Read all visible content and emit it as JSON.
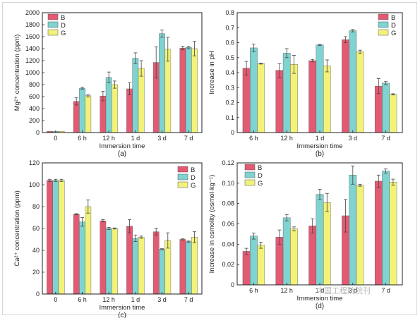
{
  "colors": {
    "B": "#e35a73",
    "D": "#7fd3d0",
    "G": "#f2f27a",
    "axis": "#222222"
  },
  "watermark": "中国工程院院刊",
  "chart_data": [
    {
      "type": "bar",
      "panel": "(a)",
      "xlabel": "Immersion time",
      "ylabel": "Mg²⁺ concentration (ppm)",
      "categories": [
        "0",
        "6 h",
        "12 h",
        "1 d",
        "3 d",
        "7 d"
      ],
      "ylim": [
        0,
        2000
      ],
      "yticks": [
        0,
        200,
        400,
        600,
        800,
        1000,
        1200,
        1400,
        1600,
        1800,
        2000
      ],
      "yticklabels": [
        "0",
        "200",
        "400",
        "600",
        "800",
        "1000",
        "1200",
        "1400",
        "1600",
        "1800",
        "2000"
      ],
      "legend_position": "top-left",
      "series": [
        {
          "name": "B",
          "values": [
            20,
            520,
            610,
            730,
            1170,
            1410
          ],
          "errors": [
            0,
            60,
            80,
            100,
            260,
            30
          ]
        },
        {
          "name": "D",
          "values": [
            20,
            740,
            920,
            1240,
            1650,
            1420
          ],
          "errors": [
            0,
            15,
            90,
            90,
            60,
            20
          ]
        },
        {
          "name": "G",
          "values": [
            20,
            615,
            800,
            1070,
            1390,
            1400
          ],
          "errors": [
            0,
            20,
            60,
            130,
            200,
            120
          ]
        }
      ]
    },
    {
      "type": "bar",
      "panel": "(b)",
      "xlabel": "Immersion time",
      "ylabel": "Increase in pH",
      "categories": [
        "6 h",
        "12 h",
        "1 d",
        "3 d",
        "7 d"
      ],
      "ylim": [
        0,
        0.8
      ],
      "yticks": [
        0,
        0.1,
        0.2,
        0.3,
        0.4,
        0.5,
        0.6,
        0.7,
        0.8
      ],
      "yticklabels": [
        "0",
        "0.1",
        "0.2",
        "0.3",
        "0.4",
        "0.5",
        "0.6",
        "0.7",
        "0.8"
      ],
      "legend_position": "top-right",
      "series": [
        {
          "name": "B",
          "values": [
            0.43,
            0.415,
            0.48,
            0.62,
            0.31
          ],
          "errors": [
            0.045,
            0.045,
            0.008,
            0.02,
            0.05
          ]
        },
        {
          "name": "D",
          "values": [
            0.565,
            0.53,
            0.585,
            0.68,
            0.33
          ],
          "errors": [
            0.025,
            0.03,
            0.004,
            0.008,
            0.01
          ]
        },
        {
          "name": "G",
          "values": [
            0.46,
            0.455,
            0.445,
            0.54,
            0.255
          ],
          "errors": [
            0.003,
            0.06,
            0.04,
            0.01,
            0.004
          ]
        }
      ]
    },
    {
      "type": "bar",
      "panel": "(c)",
      "xlabel": "Immersion time",
      "ylabel": "Ca²⁺ concentration (ppm)",
      "categories": [
        "0",
        "6 h",
        "12 h",
        "1 d",
        "3 d",
        "7 d"
      ],
      "ylim": [
        0,
        120
      ],
      "yticks": [
        0,
        20,
        40,
        60,
        80,
        100,
        120
      ],
      "yticklabels": [
        "0",
        "20",
        "40",
        "60",
        "80",
        "100",
        "120"
      ],
      "legend_position": "top-right",
      "series": [
        {
          "name": "B",
          "values": [
            104,
            73,
            67,
            62,
            57,
            50
          ],
          "errors": [
            1,
            0.5,
            1,
            6,
            3,
            0.5
          ]
        },
        {
          "name": "D",
          "values": [
            104,
            66,
            60,
            51,
            41,
            48
          ],
          "errors": [
            1,
            4,
            1,
            3,
            0.5,
            0.5
          ]
        },
        {
          "name": "G",
          "values": [
            104,
            80,
            60,
            52,
            49,
            52
          ],
          "errors": [
            1,
            6,
            0.5,
            1,
            7,
            5
          ]
        }
      ]
    },
    {
      "type": "bar",
      "panel": "(d)",
      "xlabel": "Immersion time",
      "ylabel": "Increase in osmolity (osmol·kg⁻¹)",
      "categories": [
        "6 h",
        "12 h",
        "1 d",
        "3 d",
        "7 d"
      ],
      "ylim": [
        0,
        0.12
      ],
      "yticks": [
        0,
        0.02,
        0.04,
        0.06,
        0.08,
        0.1,
        0.12
      ],
      "yticklabels": [
        "0",
        "0.02",
        "0.04",
        "0.06",
        "0.08",
        "0.10",
        "0.12"
      ],
      "legend_position": "top-left",
      "series": [
        {
          "name": "B",
          "values": [
            0.033,
            0.047,
            0.058,
            0.068,
            0.102
          ],
          "errors": [
            0.003,
            0.007,
            0.007,
            0.016,
            0.006
          ]
        },
        {
          "name": "D",
          "values": [
            0.048,
            0.066,
            0.089,
            0.108,
            0.112
          ],
          "errors": [
            0.003,
            0.003,
            0.005,
            0.009,
            0.002
          ]
        },
        {
          "name": "G",
          "values": [
            0.039,
            0.055,
            0.081,
            0.098,
            0.101
          ],
          "errors": [
            0.003,
            0.002,
            0.009,
            0.001,
            0.003
          ]
        }
      ]
    }
  ]
}
